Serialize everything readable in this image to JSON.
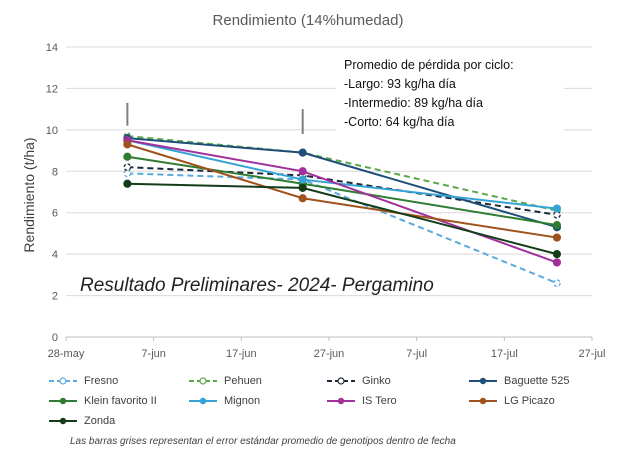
{
  "chart_data": {
    "type": "line",
    "title": "Rendimiento (14%humedad)",
    "xlabel": "",
    "ylabel": "Rendimiento (t/ha)",
    "x_ticks": [
      "28-may",
      "7-jun",
      "17-jun",
      "27-jun",
      "7-jul",
      "17-jul",
      "27-jul"
    ],
    "x_range": [
      "2024-05-28",
      "2024-07-27"
    ],
    "x": [
      "2024-06-04",
      "2024-06-24",
      "2024-07-23"
    ],
    "ylim": [
      0,
      14
    ],
    "y_ticks": [
      "0",
      "2",
      "4",
      "6",
      "8",
      "10",
      "12",
      "14"
    ],
    "grid": "horizontal",
    "legend": "bottom",
    "series": [
      {
        "name": "Fresno",
        "color": "#5aa9dc",
        "style": "dashed",
        "values": [
          7.9,
          7.6,
          2.6
        ]
      },
      {
        "name": "Pehuen",
        "color": "#5aa84a",
        "style": "dashed",
        "values": [
          9.7,
          8.9,
          6.1
        ]
      },
      {
        "name": "Ginko",
        "color": "#1a2a38",
        "style": "dashed",
        "values": [
          8.2,
          7.8,
          5.9
        ]
      },
      {
        "name": "Baguette 525",
        "color": "#1f4e79",
        "style": "solid",
        "values": [
          9.6,
          8.9,
          5.3
        ]
      },
      {
        "name": "Klein favorito II",
        "color": "#2e7d32",
        "style": "solid",
        "values": [
          8.7,
          7.4,
          5.4
        ]
      },
      {
        "name": "Mignon",
        "color": "#36a3d6",
        "style": "solid",
        "values": [
          9.5,
          7.6,
          6.2
        ]
      },
      {
        "name": "IS Tero",
        "color": "#a0309c",
        "style": "solid",
        "values": [
          9.5,
          8.0,
          3.6
        ]
      },
      {
        "name": "LG Picazo",
        "color": "#a0521c",
        "style": "solid",
        "values": [
          9.3,
          6.7,
          4.8
        ]
      },
      {
        "name": "Zonda",
        "color": "#123d18",
        "style": "solid",
        "values": [
          7.4,
          7.2,
          4.0
        ]
      }
    ],
    "annotation_lines": [
      "Promedio de pérdida por ciclo:",
      "-Largo: 93 kg/ha día",
      "-Intermedio:  89 kg/ha día",
      "-Corto: 64 kg/ha día"
    ],
    "overlay_text": "Resultado Preliminares- 2024- Pergamino",
    "footnote": "Las barras grises representan  el error estándar promedio de genotipos dentro de fecha"
  }
}
